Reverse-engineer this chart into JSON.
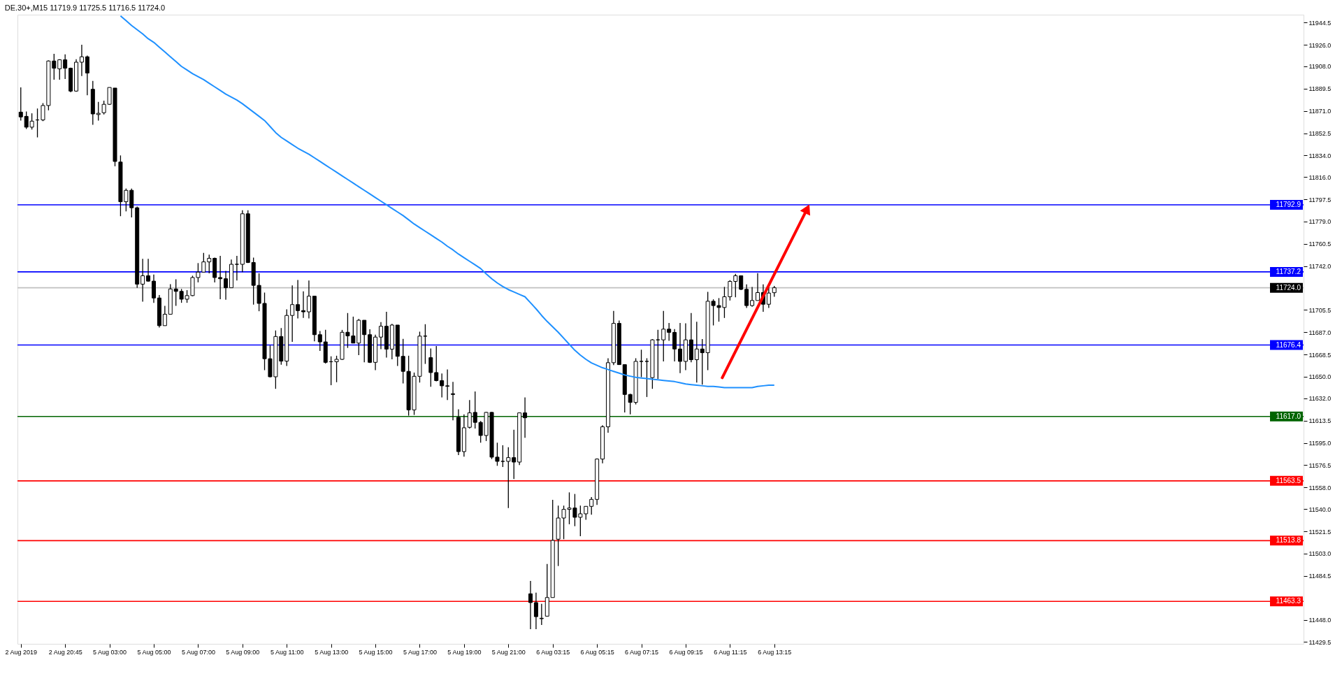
{
  "chart_data": {
    "type": "candlestick",
    "title": "DE.30+,M15  11719.9 11725.5 11716.5 11724.0",
    "color": "#000000",
    "categories": [
      "2 Aug 2019",
      null,
      null,
      null,
      null,
      null,
      null,
      null,
      "2 Aug 20:45",
      null,
      null,
      null,
      null,
      null,
      null,
      null,
      "5 Aug 03:00",
      null,
      null,
      null,
      null,
      null,
      null,
      null,
      "5 Aug 05:00",
      null,
      null,
      null,
      null,
      null,
      null,
      null,
      "5 Aug 07:00",
      null,
      null,
      null,
      null,
      null,
      null,
      null,
      "5 Aug 09:00",
      null,
      null,
      null,
      null,
      null,
      null,
      null,
      "5 Aug 11:00",
      null,
      null,
      null,
      null,
      null,
      null,
      null,
      "5 Aug 13:00",
      null,
      null,
      null,
      null,
      null,
      null,
      null,
      "5 Aug 15:00",
      null,
      null,
      null,
      null,
      null,
      null,
      null,
      "5 Aug 17:00",
      null,
      null,
      null,
      null,
      null,
      null,
      null,
      "5 Aug 19:00",
      null,
      null,
      null,
      null,
      null,
      null,
      null,
      "5 Aug 21:00",
      null,
      null,
      null,
      null,
      null,
      null,
      null,
      "6 Aug 03:15",
      null,
      null,
      null,
      null,
      null,
      null,
      null,
      "6 Aug 05:15",
      null,
      null,
      null,
      null,
      null,
      null,
      null,
      "6 Aug 07:15",
      null,
      null,
      null,
      null,
      null,
      null,
      null,
      "6 Aug 09:15",
      null,
      null,
      null,
      null,
      null,
      null,
      null,
      "6 Aug 11:15",
      null,
      null,
      null,
      null,
      null,
      null,
      null,
      "6 Aug 13:15"
    ],
    "ohlc": [
      [
        11870,
        11890.5,
        11863,
        11866
      ],
      [
        11866.5,
        11870.5,
        11856,
        11857.5
      ],
      [
        11857.5,
        11869,
        11855.5,
        11862.5
      ],
      [
        11863.5,
        11873,
        11849,
        11863.5
      ],
      [
        11863.5,
        11877.5,
        11862.5,
        11875.5
      ],
      [
        11875.5,
        11913,
        11871.5,
        11912.5
      ],
      [
        11912.5,
        11918.5,
        11897,
        11906.5
      ],
      [
        11906,
        11914,
        11897,
        11913.5
      ],
      [
        11913.5,
        11918,
        11897.5,
        11906.5
      ],
      [
        11906.5,
        11907,
        11886.5,
        11887.5
      ],
      [
        11887.5,
        11914,
        11887,
        11911.5
      ],
      [
        11911.5,
        11926,
        11900,
        11916
      ],
      [
        11916,
        11917,
        11884,
        11902.5
      ],
      [
        11889,
        11896,
        11859.5,
        11868.5
      ],
      [
        11868,
        11878.5,
        11863,
        11869
      ],
      [
        11869.5,
        11879.5,
        11868,
        11876.5
      ],
      [
        11876.5,
        11890.5,
        11876,
        11890.5
      ],
      [
        11890,
        11890,
        11825,
        11829
      ],
      [
        11828.5,
        11834,
        11783.5,
        11795.5
      ],
      [
        11795.5,
        11806.5,
        11787.5,
        11805
      ],
      [
        11805,
        11806.5,
        11782.5,
        11790.5
      ],
      [
        11790.5,
        11791.5,
        11724,
        11727
      ],
      [
        11727,
        11748,
        11712.5,
        11734
      ],
      [
        11734,
        11748,
        11729,
        11729.5
      ],
      [
        11729.5,
        11735,
        11711.5,
        11715.5
      ],
      [
        11715.5,
        11718,
        11691,
        11692.5
      ],
      [
        11692.5,
        11709,
        11692.5,
        11702
      ],
      [
        11702,
        11727,
        11702,
        11723
      ],
      [
        11723,
        11731,
        11709,
        11721
      ],
      [
        11721,
        11723,
        11711.5,
        11714.5
      ],
      [
        11714.5,
        11722,
        11711.5,
        11717.5
      ],
      [
        11717.5,
        11734,
        11717,
        11732.5
      ],
      [
        11732.5,
        11744.5,
        11728.5,
        11737
      ],
      [
        11737,
        11753,
        11737,
        11745.5
      ],
      [
        11745.5,
        11751.5,
        11736,
        11748.5
      ],
      [
        11748.5,
        11749,
        11728.5,
        11732.5
      ],
      [
        11732.5,
        11750.5,
        11714.5,
        11731.5
      ],
      [
        11731.5,
        11738,
        11714,
        11724
      ],
      [
        11724,
        11747.5,
        11724,
        11743.5
      ],
      [
        11743.5,
        11750.5,
        11730,
        11743.5
      ],
      [
        11743.5,
        11788.5,
        11737,
        11785.5
      ],
      [
        11785.5,
        11788.5,
        11744.5,
        11745
      ],
      [
        11745,
        11749,
        11710,
        11726
      ],
      [
        11726,
        11736,
        11704.5,
        11711
      ],
      [
        11711,
        11720,
        11655.5,
        11665
      ],
      [
        11665,
        11676,
        11649.5,
        11650
      ],
      [
        11650,
        11688.5,
        11640,
        11683.5
      ],
      [
        11683.5,
        11690.5,
        11660,
        11663
      ],
      [
        11663,
        11706,
        11659,
        11701
      ],
      [
        11701,
        11726,
        11679,
        11710
      ],
      [
        11710,
        11730.5,
        11698.5,
        11705
      ],
      [
        11705,
        11721,
        11699,
        11704
      ],
      [
        11704,
        11730,
        11698.5,
        11717
      ],
      [
        11717,
        11717,
        11679.5,
        11685
      ],
      [
        11685,
        11688,
        11671.5,
        11679
      ],
      [
        11679,
        11689,
        11661,
        11662
      ],
      [
        11662.5,
        11667,
        11643,
        11662.5
      ],
      [
        11662.5,
        11667.5,
        11645.5,
        11664.5
      ],
      [
        11664.5,
        11689,
        11664,
        11687
      ],
      [
        11687,
        11703,
        11674,
        11684
      ],
      [
        11684,
        11700,
        11678,
        11678
      ],
      [
        11678,
        11698,
        11668,
        11697
      ],
      [
        11697,
        11697,
        11662,
        11685
      ],
      [
        11685,
        11689.5,
        11661.5,
        11662
      ],
      [
        11662,
        11685,
        11655.5,
        11683
      ],
      [
        11683,
        11695.5,
        11673,
        11692
      ],
      [
        11692,
        11704,
        11666,
        11673
      ],
      [
        11673,
        11694,
        11664.5,
        11693
      ],
      [
        11693,
        11693,
        11659,
        11667
      ],
      [
        11667,
        11681.5,
        11644.5,
        11654.5
      ],
      [
        11654.5,
        11667.5,
        11617.7,
        11622.5
      ],
      [
        11622.5,
        11653.5,
        11618.3,
        11650.4
      ],
      [
        11650.4,
        11687.5,
        11645.2,
        11683.8
      ],
      [
        11683.8,
        11693.7,
        11660.7,
        11683.8
      ],
      [
        11665.9,
        11673.5,
        11641.7,
        11653.5
      ],
      [
        11653.5,
        11675.6,
        11646.2,
        11646.8
      ],
      [
        11646.8,
        11652.8,
        11632.8,
        11642.5
      ],
      [
        11642.5,
        11656.1,
        11630.7,
        11642.1
      ],
      [
        11635.9,
        11645.8,
        11613.8,
        11635.3
      ],
      [
        11616.3,
        11622.9,
        11584.9,
        11587.8
      ],
      [
        11587.8,
        11618.7,
        11583.6,
        11607.6
      ],
      [
        11608,
        11630.7,
        11607,
        11620
      ],
      [
        11620.4,
        11637.8,
        11607,
        11612.1
      ],
      [
        11612.1,
        11613.2,
        11595.2,
        11601.2
      ],
      [
        11601.2,
        11620.8,
        11596.6,
        11620.4
      ],
      [
        11620.4,
        11620.8,
        11581.6,
        11583.2
      ],
      [
        11583.2,
        11595.2,
        11576,
        11579.7
      ],
      [
        11579.7,
        11593.1,
        11575,
        11579.7
      ],
      [
        11579.7,
        11591.5,
        11540.9,
        11582.8
      ],
      [
        11582.8,
        11606,
        11565,
        11579.1
      ],
      [
        11579.1,
        11620.4,
        11576.6,
        11620
      ],
      [
        11620,
        11632.8,
        11599.3,
        11615.9
      ],
      [
        11469.6,
        11480.3,
        11440.2,
        11462.3
      ],
      [
        11462.3,
        11470.6,
        11440.2,
        11450.6
      ],
      [
        11448.9,
        11461.3,
        11443.7,
        11449.3
      ],
      [
        11451,
        11494.4,
        11451,
        11466.5
      ],
      [
        11466.5,
        11547.7,
        11466.5,
        11514
      ],
      [
        11515,
        11542.9,
        11492.7,
        11532.6
      ],
      [
        11532.6,
        11542.9,
        11515,
        11539.8
      ],
      [
        11539.8,
        11553.9,
        11527.4,
        11540.9
      ],
      [
        11540.9,
        11552.6,
        11525.8,
        11533.2
      ],
      [
        11533.2,
        11542.9,
        11517.5,
        11536.1
      ],
      [
        11536.1,
        11542.3,
        11531.1,
        11542.3
      ],
      [
        11542.3,
        11550.1,
        11535.3,
        11548.1
      ],
      [
        11548.1,
        11582.2,
        11543.5,
        11581.6
      ],
      [
        11581.6,
        11609.7,
        11578,
        11608.4
      ],
      [
        11608.4,
        11665.4,
        11603.5,
        11661.7
      ],
      [
        11661.7,
        11704.7,
        11659.7,
        11694.4
      ],
      [
        11694.4,
        11696.8,
        11660.1,
        11660.1
      ],
      [
        11660.1,
        11660.1,
        11620.4,
        11635.3
      ],
      [
        11635.3,
        11635.9,
        11618.7,
        11628.7
      ],
      [
        11628.7,
        11665.4,
        11627,
        11662.8
      ],
      [
        11662.8,
        11672.5,
        11649.7,
        11662.8
      ],
      [
        11662.8,
        11665.4,
        11633.2,
        11662.8
      ],
      [
        11649.3,
        11681.3,
        11640,
        11680.7
      ],
      [
        11680.7,
        11689,
        11648.3,
        11680.7
      ],
      [
        11680.7,
        11704.7,
        11662.8,
        11689.6
      ],
      [
        11689.6,
        11694.8,
        11679.9,
        11686.9
      ],
      [
        11686.9,
        11689.6,
        11662.8,
        11673.1
      ],
      [
        11673.1,
        11694.8,
        11653,
        11662.8
      ],
      [
        11662.8,
        11694.4,
        11655.5,
        11680.7
      ],
      [
        11680.7,
        11703,
        11662.1,
        11664.2
      ],
      [
        11664.2,
        11695.8,
        11645.2,
        11673.1
      ],
      [
        11673.1,
        11681.3,
        11643.5,
        11670
      ],
      [
        11670,
        11720.6,
        11655.5,
        11712.8
      ],
      [
        11712.8,
        11714.4,
        11692.7,
        11709.2
      ],
      [
        11709.2,
        11715.4,
        11695.8,
        11707.6
      ],
      [
        11707.6,
        11724.7,
        11698.9,
        11716.5
      ],
      [
        11716.5,
        11730.3,
        11713.4,
        11729.3
      ],
      [
        11729.3,
        11735.5,
        11716.1,
        11734
      ],
      [
        11734,
        11734,
        11722,
        11722.7
      ],
      [
        11722.7,
        11726.8,
        11707.2,
        11709.2
      ],
      [
        11709.2,
        11724.7,
        11708.2,
        11713.4
      ],
      [
        11713.4,
        11736.1,
        11713.4,
        11720
      ],
      [
        11720,
        11726.8,
        11704.1,
        11710.3
      ],
      [
        11710.3,
        11724.7,
        11707.2,
        11719.6
      ],
      [
        11719.9,
        11725.5,
        11716.5,
        11724
      ]
    ],
    "series": [
      {
        "type": "line",
        "color": "#1e90ff",
        "values": [
          null,
          null,
          null,
          null,
          null,
          null,
          null,
          null,
          null,
          null,
          null,
          null,
          null,
          null,
          null,
          null,
          null,
          null,
          11950,
          11946,
          11942,
          11938.5,
          11935,
          11931,
          11928,
          11924,
          11920,
          11916,
          11912,
          11908,
          11905,
          11902,
          11899.5,
          11897,
          11894,
          11891,
          11888,
          11885,
          11882.5,
          11880,
          11877,
          11873.5,
          11870,
          11866.5,
          11863,
          11858,
          11853,
          11849,
          11846,
          11843,
          11840,
          11837.5,
          11835,
          11832,
          11829,
          11826,
          11823,
          11820,
          11817,
          11814,
          11811,
          11808,
          11805,
          11802,
          11799,
          11796,
          11793,
          11790,
          11787,
          11784,
          11780.5,
          11777,
          11774,
          11771,
          11768,
          11765,
          11762,
          11758.5,
          11755.5,
          11752,
          11749,
          11746,
          11743,
          11740,
          11735.5,
          11731.5,
          11728,
          11725,
          11722.5,
          11720.5,
          11718.5,
          11716.5,
          11711.5,
          11706.5,
          11701,
          11696,
          11691.5,
          11687,
          11682,
          11677,
          11672,
          11668,
          11664.5,
          11661.5,
          11659.5,
          11657.5,
          11656,
          11654.5,
          11653,
          11651.5,
          11650.5,
          11649.5,
          11649,
          11648.5,
          11648,
          11647.5,
          11647,
          11646.5,
          11646,
          11645,
          11644,
          11643.5,
          11643,
          11642.5,
          11642,
          11642,
          11641.5,
          11641,
          11641,
          11641,
          11641,
          11641,
          11641,
          11642,
          11642.5,
          11643,
          11643
        ]
      }
    ],
    "ylim": [
      11428,
      11951
    ],
    "yticks": [
      11944.5,
      {
        "value": 11926,
        "label": "11926.0"
      },
      {
        "value": 11908,
        "label": "11908.0"
      },
      11889.5,
      {
        "value": 11871,
        "label": "11871.0"
      },
      11852.5,
      {
        "value": 11834,
        "label": "11834.0"
      },
      {
        "value": 11816,
        "label": "11816.0"
      },
      11797.5,
      {
        "value": 11779,
        "label": "11779.0"
      },
      11760.5,
      {
        "value": 11742,
        "label": "11742.0"
      },
      11705.5,
      {
        "value": 11687,
        "label": "11687.0"
      },
      11668.5,
      {
        "value": 11650,
        "label": "11650.0"
      },
      {
        "value": 11632,
        "label": "11632.0"
      },
      11613.5,
      {
        "value": 11595,
        "label": "11595.0"
      },
      11576.5,
      {
        "value": 11558,
        "label": "11558.0"
      },
      {
        "value": 11540,
        "label": "11540.0"
      },
      11521.5,
      {
        "value": 11503,
        "label": "11503.0"
      },
      11484.5,
      {
        "value": 11448,
        "label": "11448.0"
      },
      11429.5
    ],
    "ref_lines": [
      {
        "axis": "y",
        "value": 11792.9,
        "label": "11792.9",
        "color": "#0000ff"
      },
      {
        "axis": "y",
        "value": 11737.2,
        "label": "11737.2",
        "color": "#0000ff"
      },
      {
        "axis": "y",
        "value": 11724.0,
        "label": "11724.0",
        "color": "#c0c0c0"
      },
      {
        "axis": "y",
        "value": 11676.4,
        "label": "11676.4",
        "color": "#0000ff"
      },
      {
        "axis": "y",
        "value": 11617.0,
        "label": "11617.0",
        "color": "#006400"
      },
      {
        "axis": "y",
        "value": 11563.5,
        "label": "11563.5",
        "color": "#ff0000"
      },
      {
        "axis": "y",
        "value": 11513.8,
        "label": "11513.8",
        "color": "#ff0000"
      },
      {
        "axis": "y",
        "value": 11463.3,
        "label": "11463.3",
        "color": "#ff0000"
      }
    ]
  }
}
